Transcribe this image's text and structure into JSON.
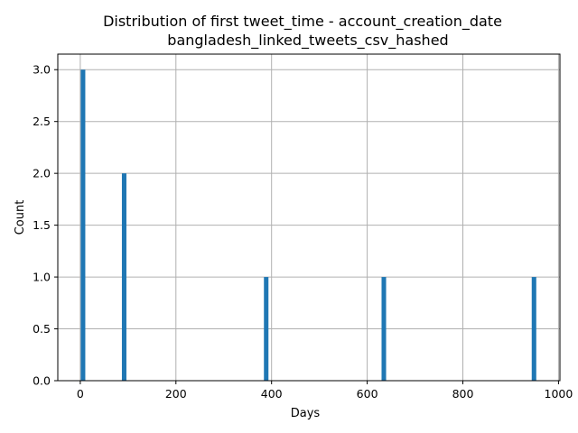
{
  "chart_data": {
    "type": "bar",
    "title": "Distribution of first tweet_time - account_creation_date",
    "subtitle": "bangladesh_linked_tweets_csv_hashed",
    "xlabel": "Days",
    "ylabel": "Count",
    "xlim": [
      -47,
      1003
    ],
    "ylim": [
      0,
      3.15
    ],
    "xticks": [
      0,
      200,
      400,
      600,
      800,
      1000
    ],
    "yticks": [
      0.0,
      0.5,
      1.0,
      1.5,
      2.0,
      2.5,
      3.0
    ],
    "xtick_labels": [
      "0",
      "200",
      "400",
      "600",
      "800",
      "1000"
    ],
    "ytick_labels": [
      "0.0",
      "0.5",
      "1.0",
      "1.5",
      "2.0",
      "2.5",
      "3.0"
    ],
    "grid": true,
    "bar_width": 9.5,
    "bars": [
      {
        "x": 1,
        "count": 3
      },
      {
        "x": 87,
        "count": 2
      },
      {
        "x": 384,
        "count": 1
      },
      {
        "x": 630,
        "count": 1
      },
      {
        "x": 944,
        "count": 1
      }
    ],
    "color": "#1f77b4"
  }
}
